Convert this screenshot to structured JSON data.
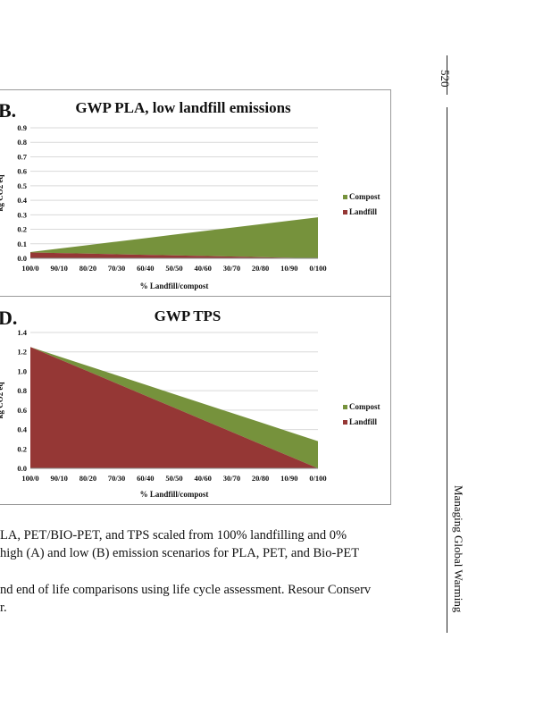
{
  "page": {
    "page_number": "520",
    "running_head": "Managing Global Warming"
  },
  "colors": {
    "compost": "#76923c",
    "landfill": "#953735",
    "grid": "#d9d9d9"
  },
  "chart_data": [
    {
      "type": "area",
      "panel_label": "B.",
      "title": "GWP PLA, low landfill emissions",
      "xlabel": "% Landfill/compost",
      "ylabel": "kg CO2 eq",
      "categories": [
        "100/0",
        "90/10",
        "80/20",
        "70/30",
        "60/40",
        "50/50",
        "40/60",
        "30/70",
        "20/80",
        "10/90",
        "0/100"
      ],
      "yticks": [
        "0.0",
        "0.1",
        "0.2",
        "0.3",
        "0.4",
        "0.5",
        "0.6",
        "0.7",
        "0.8",
        "0.9"
      ],
      "ylim": [
        0,
        0.9
      ],
      "stacked": true,
      "grid": true,
      "legend_position": "right",
      "series": [
        {
          "name": "Compost",
          "values": [
            0.003,
            0.031,
            0.059,
            0.087,
            0.115,
            0.143,
            0.171,
            0.199,
            0.227,
            0.255,
            0.283
          ]
        },
        {
          "name": "Landfill",
          "values": [
            0.04,
            0.036,
            0.032,
            0.028,
            0.024,
            0.02,
            0.016,
            0.012,
            0.008,
            0.004,
            0.0
          ]
        }
      ]
    },
    {
      "type": "area",
      "panel_label": "D.",
      "title": "GWP TPS",
      "xlabel": "% Landfill/compost",
      "ylabel": "kg CO2 eq",
      "categories": [
        "100/0",
        "90/10",
        "80/20",
        "70/30",
        "60/40",
        "50/50",
        "40/60",
        "30/70",
        "20/80",
        "10/90",
        "0/100"
      ],
      "yticks": [
        "0.0",
        "0.2",
        "0.4",
        "0.6",
        "0.8",
        "1.0",
        "1.2",
        "1.4"
      ],
      "ylim": [
        0,
        1.4
      ],
      "stacked": true,
      "grid": true,
      "legend_position": "right",
      "series": [
        {
          "name": "Compost",
          "values": [
            0.0,
            0.028,
            0.056,
            0.084,
            0.112,
            0.14,
            0.168,
            0.196,
            0.224,
            0.252,
            0.28
          ]
        },
        {
          "name": "Landfill",
          "values": [
            1.25,
            1.125,
            1.0,
            0.875,
            0.75,
            0.625,
            0.5,
            0.375,
            0.25,
            0.125,
            0.0
          ]
        }
      ]
    }
  ],
  "caption": {
    "lines": [
      "LA, PET/BIO-PET, and TPS scaled from 100% landfilling and 0%",
      " high (A) and low (B) emission scenarios for PLA, PET, and Bio-PET",
      "nd end of life comparisons using life cycle assessment. Resour Conserv",
      "r."
    ]
  }
}
